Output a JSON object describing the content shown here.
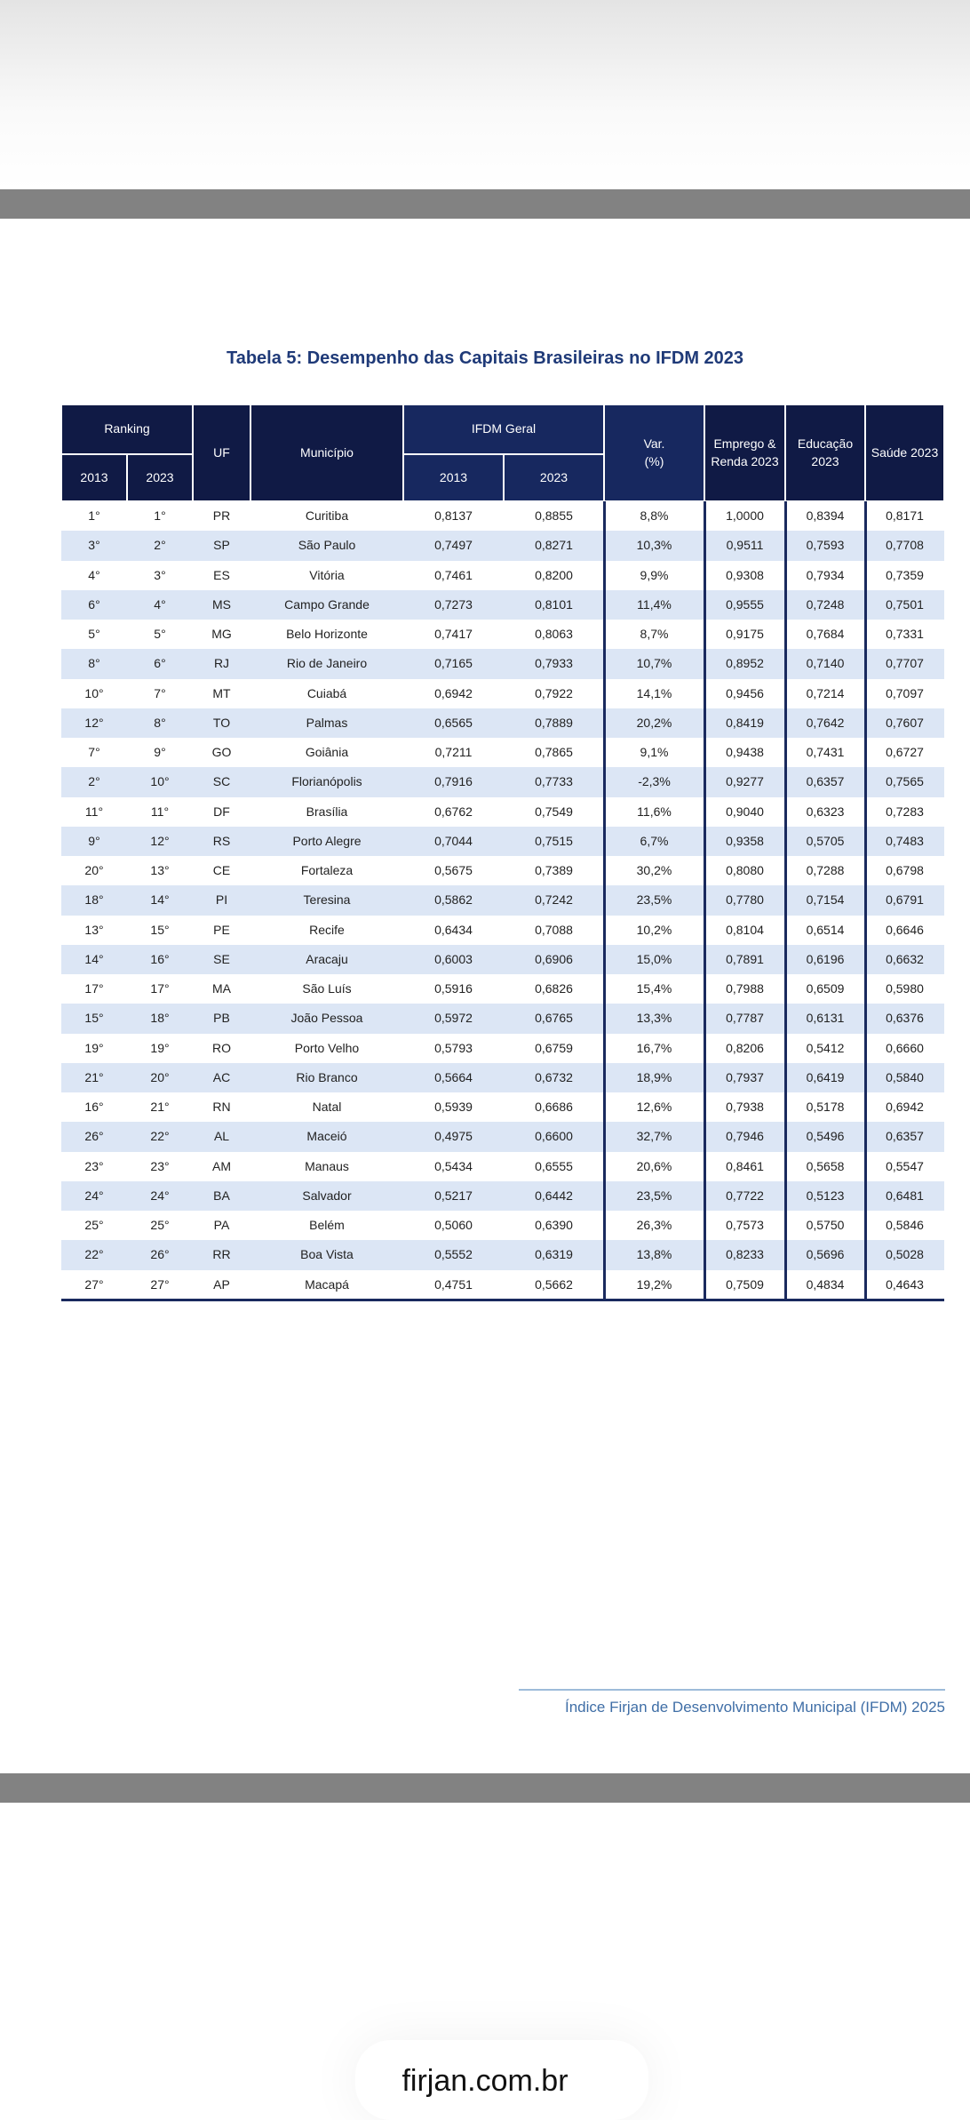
{
  "title": "Tabela 5: Desempenho das Capitais Brasileiras no IFDM 2023",
  "headers": {
    "ranking": "Ranking",
    "rank_2013": "2013",
    "rank_2023": "2023",
    "uf": "UF",
    "municipio": "Município",
    "ifdm_geral": "IFDM Geral",
    "ifdm_2013": "2013",
    "ifdm_2023": "2023",
    "var": "Var. (%)",
    "emprego": "Emprego & Renda 2023",
    "educacao": "Educação 2023",
    "saude": "Saúde 2023"
  },
  "rows": [
    [
      "1°",
      "1°",
      "PR",
      "Curitiba",
      "0,8137",
      "0,8855",
      "8,8%",
      "1,0000",
      "0,8394",
      "0,8171"
    ],
    [
      "3°",
      "2°",
      "SP",
      "São Paulo",
      "0,7497",
      "0,8271",
      "10,3%",
      "0,9511",
      "0,7593",
      "0,7708"
    ],
    [
      "4°",
      "3°",
      "ES",
      "Vitória",
      "0,7461",
      "0,8200",
      "9,9%",
      "0,9308",
      "0,7934",
      "0,7359"
    ],
    [
      "6°",
      "4°",
      "MS",
      "Campo Grande",
      "0,7273",
      "0,8101",
      "11,4%",
      "0,9555",
      "0,7248",
      "0,7501"
    ],
    [
      "5°",
      "5°",
      "MG",
      "Belo Horizonte",
      "0,7417",
      "0,8063",
      "8,7%",
      "0,9175",
      "0,7684",
      "0,7331"
    ],
    [
      "8°",
      "6°",
      "RJ",
      "Rio de Janeiro",
      "0,7165",
      "0,7933",
      "10,7%",
      "0,8952",
      "0,7140",
      "0,7707"
    ],
    [
      "10°",
      "7°",
      "MT",
      "Cuiabá",
      "0,6942",
      "0,7922",
      "14,1%",
      "0,9456",
      "0,7214",
      "0,7097"
    ],
    [
      "12°",
      "8°",
      "TO",
      "Palmas",
      "0,6565",
      "0,7889",
      "20,2%",
      "0,8419",
      "0,7642",
      "0,7607"
    ],
    [
      "7°",
      "9°",
      "GO",
      "Goiânia",
      "0,7211",
      "0,7865",
      "9,1%",
      "0,9438",
      "0,7431",
      "0,6727"
    ],
    [
      "2°",
      "10°",
      "SC",
      "Florianópolis",
      "0,7916",
      "0,7733",
      "-2,3%",
      "0,9277",
      "0,6357",
      "0,7565"
    ],
    [
      "11°",
      "11°",
      "DF",
      "Brasília",
      "0,6762",
      "0,7549",
      "11,6%",
      "0,9040",
      "0,6323",
      "0,7283"
    ],
    [
      "9°",
      "12°",
      "RS",
      "Porto Alegre",
      "0,7044",
      "0,7515",
      "6,7%",
      "0,9358",
      "0,5705",
      "0,7483"
    ],
    [
      "20°",
      "13°",
      "CE",
      "Fortaleza",
      "0,5675",
      "0,7389",
      "30,2%",
      "0,8080",
      "0,7288",
      "0,6798"
    ],
    [
      "18°",
      "14°",
      "PI",
      "Teresina",
      "0,5862",
      "0,7242",
      "23,5%",
      "0,7780",
      "0,7154",
      "0,6791"
    ],
    [
      "13°",
      "15°",
      "PE",
      "Recife",
      "0,6434",
      "0,7088",
      "10,2%",
      "0,8104",
      "0,6514",
      "0,6646"
    ],
    [
      "14°",
      "16°",
      "SE",
      "Aracaju",
      "0,6003",
      "0,6906",
      "15,0%",
      "0,7891",
      "0,6196",
      "0,6632"
    ],
    [
      "17°",
      "17°",
      "MA",
      "São Luís",
      "0,5916",
      "0,6826",
      "15,4%",
      "0,7988",
      "0,6509",
      "0,5980"
    ],
    [
      "15°",
      "18°",
      "PB",
      "João Pessoa",
      "0,5972",
      "0,6765",
      "13,3%",
      "0,7787",
      "0,6131",
      "0,6376"
    ],
    [
      "19°",
      "19°",
      "RO",
      "Porto Velho",
      "0,5793",
      "0,6759",
      "16,7%",
      "0,8206",
      "0,5412",
      "0,6660"
    ],
    [
      "21°",
      "20°",
      "AC",
      "Rio Branco",
      "0,5664",
      "0,6732",
      "18,9%",
      "0,7937",
      "0,6419",
      "0,5840"
    ],
    [
      "16°",
      "21°",
      "RN",
      "Natal",
      "0,5939",
      "0,6686",
      "12,6%",
      "0,7938",
      "0,5178",
      "0,6942"
    ],
    [
      "26°",
      "22°",
      "AL",
      "Maceió",
      "0,4975",
      "0,6600",
      "32,7%",
      "0,7946",
      "0,5496",
      "0,6357"
    ],
    [
      "23°",
      "23°",
      "AM",
      "Manaus",
      "0,5434",
      "0,6555",
      "20,6%",
      "0,8461",
      "0,5658",
      "0,5547"
    ],
    [
      "24°",
      "24°",
      "BA",
      "Salvador",
      "0,5217",
      "0,6442",
      "23,5%",
      "0,7722",
      "0,5123",
      "0,6481"
    ],
    [
      "25°",
      "25°",
      "PA",
      "Belém",
      "0,5060",
      "0,6390",
      "26,3%",
      "0,7573",
      "0,5750",
      "0,5846"
    ],
    [
      "22°",
      "26°",
      "RR",
      "Boa Vista",
      "0,5552",
      "0,6319",
      "13,8%",
      "0,8233",
      "0,5696",
      "0,5028"
    ],
    [
      "27°",
      "27°",
      "AP",
      "Macapá",
      "0,4751",
      "0,5662",
      "19,2%",
      "0,7509",
      "0,4834",
      "0,4643"
    ]
  ],
  "footer": "Índice Firjan de Desenvolvimento Municipal (IFDM) 2025",
  "url": "firjan.com.br",
  "colors": {
    "header_dark": "#101a45",
    "header_light": "#17285f",
    "row_stripe": "#dce6f5",
    "title": "#1f3a78",
    "footer_text": "#3f6ea6"
  }
}
